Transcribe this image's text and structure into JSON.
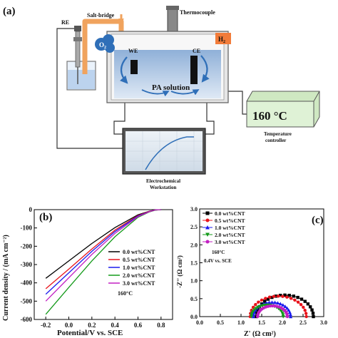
{
  "panel_a": {
    "label": "(a)",
    "re": "RE",
    "salt_bridge": "Salt-bridge",
    "thermocouple": "Thermocouple",
    "o2": "O",
    "o2_sub": "2",
    "h2": "H",
    "h2_sub": "2",
    "we": "WE",
    "ce": "CE",
    "solution": "PA solution",
    "temp_display": "160 °C",
    "temp_label_1": "Temperature",
    "temp_label_2": "controller",
    "workstation_1": "Electrochemical",
    "workstation_2": "Workstation",
    "colors": {
      "salt_bridge": "#f0a35e",
      "solution": "#bcd3ee",
      "o2": "#2f6fb8",
      "h2": "#f27c3a",
      "temp_box": "#dff2d6"
    }
  },
  "panel_b": {
    "label": "(b)",
    "temp_note": "160°C",
    "legend_position": "lower-right"
  },
  "panel_c": {
    "label": "(c)",
    "temp_note": "160°C",
    "cond_note": "0.4V vs. SCE",
    "legend_position": "upper-left"
  },
  "chart_data": [
    {
      "type": "line",
      "panel": "b",
      "xlabel": "Potential/V vs. SCE",
      "ylabel": "Current density / (mA cm⁻²)",
      "xlim": [
        -0.3,
        0.9
      ],
      "ylim": [
        -600,
        0
      ],
      "xticks": [
        "-0.2",
        "0.0",
        "0.2",
        "0.4",
        "0.6",
        "0.8"
      ],
      "yticks": [
        "0",
        "-100",
        "-200",
        "-300",
        "-400",
        "-500",
        "-600"
      ],
      "grid": false,
      "series": [
        {
          "name": "0.0 wt%CNT",
          "color": "#000000",
          "x": [
            -0.2,
            0.0,
            0.2,
            0.4,
            0.6,
            0.7,
            0.75,
            0.8
          ],
          "y": [
            -375,
            -280,
            -185,
            -98,
            -28,
            -8,
            -2,
            0
          ]
        },
        {
          "name": "0.5 wt%CNT",
          "color": "#e8141c",
          "x": [
            -0.2,
            0.0,
            0.2,
            0.4,
            0.6,
            0.7,
            0.75,
            0.8
          ],
          "y": [
            -432,
            -325,
            -215,
            -112,
            -32,
            -9,
            -2,
            0
          ]
        },
        {
          "name": "1.0 wt%CNT",
          "color": "#1a1aee",
          "x": [
            -0.2,
            0.0,
            0.2,
            0.4,
            0.6,
            0.7,
            0.75,
            0.8
          ],
          "y": [
            -462,
            -345,
            -228,
            -120,
            -35,
            -10,
            -2,
            0
          ]
        },
        {
          "name": "2.0 wt%CNT",
          "color": "#149a1a",
          "x": [
            -0.2,
            0.0,
            0.2,
            0.4,
            0.6,
            0.7,
            0.75,
            0.8
          ],
          "y": [
            -572,
            -425,
            -280,
            -148,
            -42,
            -12,
            -3,
            0
          ]
        },
        {
          "name": "3.0 wt%CNT",
          "color": "#c21fc2",
          "x": [
            -0.2,
            0.0,
            0.2,
            0.4,
            0.6,
            0.7,
            0.75,
            0.8
          ],
          "y": [
            -500,
            -372,
            -245,
            -130,
            -38,
            -11,
            -2,
            0
          ]
        }
      ]
    },
    {
      "type": "scatter",
      "panel": "c",
      "xlabel": "Z' (Ω cm²)",
      "ylabel": "-Z'' (Ω cm²)",
      "xlim": [
        0,
        3.0
      ],
      "ylim": [
        0,
        3.0
      ],
      "xticks": [
        "0.0",
        "0.5",
        "1.0",
        "1.5",
        "2.0",
        "2.5",
        "3.0"
      ],
      "yticks": [
        "0.0",
        "0.5",
        "1.0",
        "1.5",
        "2.0",
        "2.5",
        "3.0"
      ],
      "grid": false,
      "series": [
        {
          "name": "0.0 wt%CNT",
          "color": "#000000",
          "marker": "square",
          "r0": 1.37,
          "r1": 2.75,
          "peak": 0.6
        },
        {
          "name": "0.5 wt%CNT",
          "color": "#e8141c",
          "marker": "circle",
          "r0": 1.22,
          "r1": 2.58,
          "peak": 0.57
        },
        {
          "name": "1.0 wt%CNT",
          "color": "#1a1aee",
          "marker": "triangle-up",
          "r0": 1.3,
          "r1": 2.2,
          "peak": 0.4
        },
        {
          "name": "2.0 wt%CNT",
          "color": "#149a1a",
          "marker": "triangle-down",
          "r0": 1.25,
          "r1": 2.02,
          "peak": 0.32
        },
        {
          "name": "3.0 wt%CNT",
          "color": "#c21fc2",
          "marker": "circle",
          "r0": 1.4,
          "r1": 2.12,
          "peak": 0.3
        }
      ]
    }
  ]
}
